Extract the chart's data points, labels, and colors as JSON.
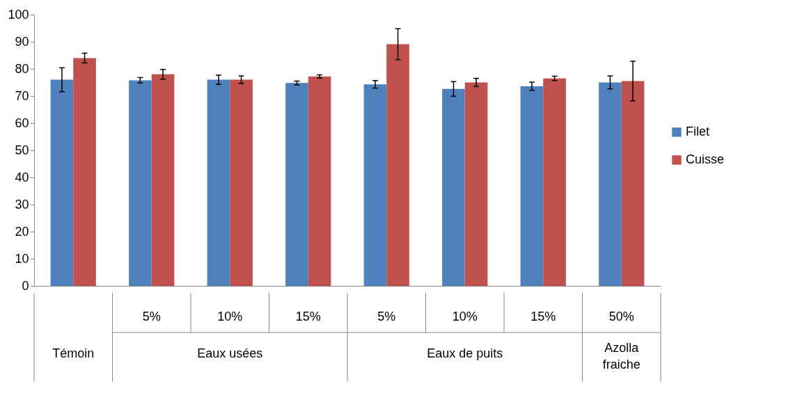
{
  "chart_data": {
    "type": "bar",
    "categories": [
      null,
      "5%",
      "10%",
      "15%",
      "5%",
      "10%",
      "15%",
      "50%"
    ],
    "series": [
      {
        "name": "Filet",
        "color": "#4f81bd",
        "values": [
          76.0,
          75.8,
          76.0,
          74.8,
          74.3,
          72.6,
          73.6,
          75.0
        ],
        "errors": [
          4.4,
          1.0,
          1.7,
          0.7,
          1.4,
          2.7,
          1.5,
          2.4
        ]
      },
      {
        "name": "Cuisse",
        "color": "#c0504d",
        "values": [
          84.0,
          78.0,
          76.0,
          77.2,
          89.1,
          75.0,
          76.5,
          75.5
        ],
        "errors": [
          1.8,
          1.8,
          1.4,
          0.6,
          5.7,
          1.5,
          0.8,
          7.3
        ]
      }
    ],
    "ylim": [
      0,
      100
    ],
    "yticks": [
      0,
      10,
      20,
      30,
      40,
      50,
      60,
      70,
      80,
      90,
      100
    ],
    "annotations": [
      "Témoin",
      "Eaux usées",
      "Eaux de puits",
      "Azolla fraiche"
    ],
    "grid": false,
    "legend": "right"
  }
}
